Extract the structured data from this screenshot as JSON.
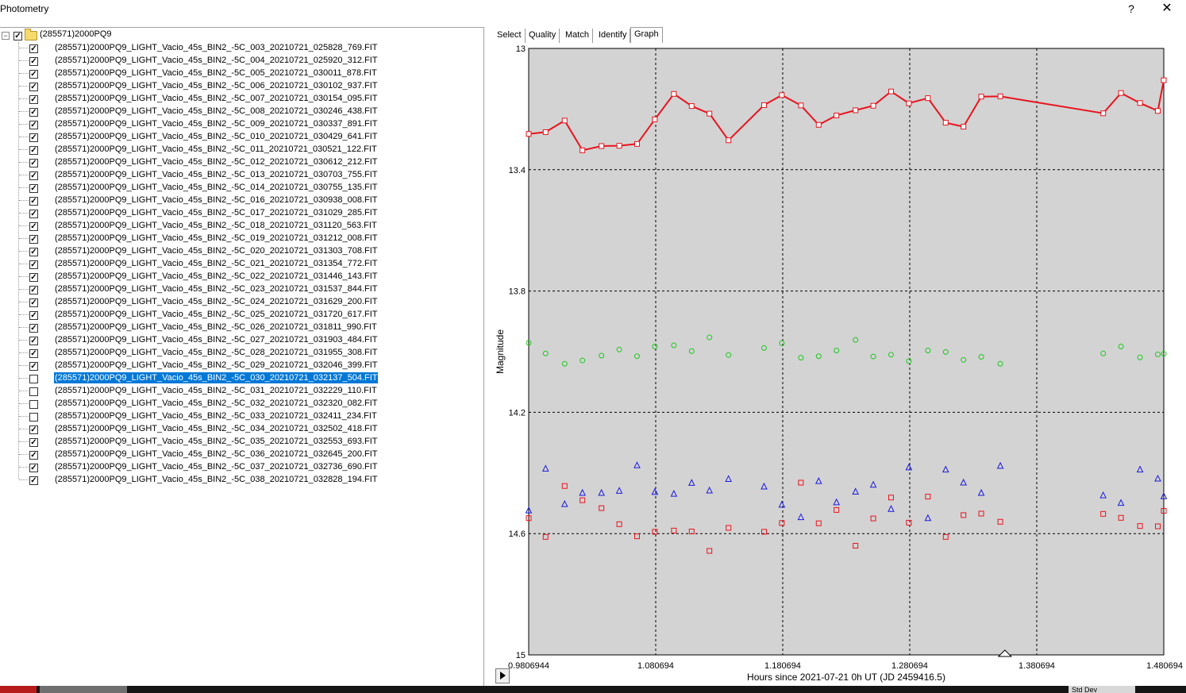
{
  "window": {
    "title": "Photometry",
    "help_label": "?",
    "close_label": "✕"
  },
  "tree": {
    "root_label": "(285571)2000PQ9",
    "root_expander": "−",
    "root_checked": true,
    "items": [
      {
        "label": "(285571)2000PQ9_LIGHT_Vacio_45s_BIN2_-5C_003_20210721_025828_769.FIT",
        "checked": true
      },
      {
        "label": "(285571)2000PQ9_LIGHT_Vacio_45s_BIN2_-5C_004_20210721_025920_312.FIT",
        "checked": true
      },
      {
        "label": "(285571)2000PQ9_LIGHT_Vacio_45s_BIN2_-5C_005_20210721_030011_878.FIT",
        "checked": true
      },
      {
        "label": "(285571)2000PQ9_LIGHT_Vacio_45s_BIN2_-5C_006_20210721_030102_937.FIT",
        "checked": true
      },
      {
        "label": "(285571)2000PQ9_LIGHT_Vacio_45s_BIN2_-5C_007_20210721_030154_095.FIT",
        "checked": true
      },
      {
        "label": "(285571)2000PQ9_LIGHT_Vacio_45s_BIN2_-5C_008_20210721_030246_438.FIT",
        "checked": true
      },
      {
        "label": "(285571)2000PQ9_LIGHT_Vacio_45s_BIN2_-5C_009_20210721_030337_891.FIT",
        "checked": true
      },
      {
        "label": "(285571)2000PQ9_LIGHT_Vacio_45s_BIN2_-5C_010_20210721_030429_641.FIT",
        "checked": true
      },
      {
        "label": "(285571)2000PQ9_LIGHT_Vacio_45s_BIN2_-5C_011_20210721_030521_122.FIT",
        "checked": true
      },
      {
        "label": "(285571)2000PQ9_LIGHT_Vacio_45s_BIN2_-5C_012_20210721_030612_212.FIT",
        "checked": true
      },
      {
        "label": "(285571)2000PQ9_LIGHT_Vacio_45s_BIN2_-5C_013_20210721_030703_755.FIT",
        "checked": true
      },
      {
        "label": "(285571)2000PQ9_LIGHT_Vacio_45s_BIN2_-5C_014_20210721_030755_135.FIT",
        "checked": true
      },
      {
        "label": "(285571)2000PQ9_LIGHT_Vacio_45s_BIN2_-5C_016_20210721_030938_008.FIT",
        "checked": true
      },
      {
        "label": "(285571)2000PQ9_LIGHT_Vacio_45s_BIN2_-5C_017_20210721_031029_285.FIT",
        "checked": true
      },
      {
        "label": "(285571)2000PQ9_LIGHT_Vacio_45s_BIN2_-5C_018_20210721_031120_563.FIT",
        "checked": true
      },
      {
        "label": "(285571)2000PQ9_LIGHT_Vacio_45s_BIN2_-5C_019_20210721_031212_008.FIT",
        "checked": true
      },
      {
        "label": "(285571)2000PQ9_LIGHT_Vacio_45s_BIN2_-5C_020_20210721_031303_708.FIT",
        "checked": true
      },
      {
        "label": "(285571)2000PQ9_LIGHT_Vacio_45s_BIN2_-5C_021_20210721_031354_772.FIT",
        "checked": true
      },
      {
        "label": "(285571)2000PQ9_LIGHT_Vacio_45s_BIN2_-5C_022_20210721_031446_143.FIT",
        "checked": true
      },
      {
        "label": "(285571)2000PQ9_LIGHT_Vacio_45s_BIN2_-5C_023_20210721_031537_844.FIT",
        "checked": true
      },
      {
        "label": "(285571)2000PQ9_LIGHT_Vacio_45s_BIN2_-5C_024_20210721_031629_200.FIT",
        "checked": true
      },
      {
        "label": "(285571)2000PQ9_LIGHT_Vacio_45s_BIN2_-5C_025_20210721_031720_617.FIT",
        "checked": true
      },
      {
        "label": "(285571)2000PQ9_LIGHT_Vacio_45s_BIN2_-5C_026_20210721_031811_990.FIT",
        "checked": true
      },
      {
        "label": "(285571)2000PQ9_LIGHT_Vacio_45s_BIN2_-5C_027_20210721_031903_484.FIT",
        "checked": true
      },
      {
        "label": "(285571)2000PQ9_LIGHT_Vacio_45s_BIN2_-5C_028_20210721_031955_308.FIT",
        "checked": true
      },
      {
        "label": "(285571)2000PQ9_LIGHT_Vacio_45s_BIN2_-5C_029_20210721_032046_399.FIT",
        "checked": true
      },
      {
        "label": "(285571)2000PQ9_LIGHT_Vacio_45s_BIN2_-5C_030_20210721_032137_504.FIT",
        "checked": false,
        "selected": true
      },
      {
        "label": "(285571)2000PQ9_LIGHT_Vacio_45s_BIN2_-5C_031_20210721_032229_110.FIT",
        "checked": false
      },
      {
        "label": "(285571)2000PQ9_LIGHT_Vacio_45s_BIN2_-5C_032_20210721_032320_082.FIT",
        "checked": false
      },
      {
        "label": "(285571)2000PQ9_LIGHT_Vacio_45s_BIN2_-5C_033_20210721_032411_234.FIT",
        "checked": false
      },
      {
        "label": "(285571)2000PQ9_LIGHT_Vacio_45s_BIN2_-5C_034_20210721_032502_418.FIT",
        "checked": true
      },
      {
        "label": "(285571)2000PQ9_LIGHT_Vacio_45s_BIN2_-5C_035_20210721_032553_693.FIT",
        "checked": true
      },
      {
        "label": "(285571)2000PQ9_LIGHT_Vacio_45s_BIN2_-5C_036_20210721_032645_200.FIT",
        "checked": true
      },
      {
        "label": "(285571)2000PQ9_LIGHT_Vacio_45s_BIN2_-5C_037_20210721_032736_690.FIT",
        "checked": true
      },
      {
        "label": "(285571)2000PQ9_LIGHT_Vacio_45s_BIN2_-5C_038_20210721_032828_194.FIT",
        "checked": true
      }
    ]
  },
  "tabs": [
    {
      "label": "Select",
      "active": false
    },
    {
      "label": "Quality",
      "active": false
    },
    {
      "label": "Match",
      "active": false
    },
    {
      "label": "Identify",
      "active": false
    },
    {
      "label": "Graph",
      "active": true
    }
  ],
  "status_strip": {
    "std_dev_label": "Std Dev"
  },
  "colors": {
    "plot_background": "#d3d3d3",
    "target": "#e8141e",
    "comp_green": "#1ec81e",
    "comp_blue": "#1a1ae0",
    "comp_red": "#e8141e",
    "selection": "#0078d7"
  },
  "icons": {
    "play": "play-icon",
    "folder": "folder-icon",
    "cursor": "triangle-cursor-icon"
  },
  "chart_data": {
    "type": "scatter",
    "xlabel": "Hours since 2021-07-21 0h UT (JD 2459416.5)",
    "ylabel": "Magnitude",
    "xlim": [
      0.9806944,
      1.480694
    ],
    "ylim": [
      15,
      13
    ],
    "y_inverted": true,
    "xticks": [
      0.9806944,
      1.080694,
      1.180694,
      1.280694,
      1.380694,
      1.480694
    ],
    "xtick_labels": [
      "0.9806944",
      "1.080694",
      "1.180694",
      "1.280694",
      "1.380694",
      "1.480694"
    ],
    "yticks": [
      13,
      13.4,
      13.8,
      14.2,
      14.6,
      15
    ],
    "ytick_labels": [
      "13",
      "13.4",
      "13.8",
      "14.2",
      "14.6",
      "15"
    ],
    "grid": true,
    "cursor_x": 1.3556,
    "series": [
      {
        "marker": "square",
        "color": "#e8141e",
        "connected": true,
        "points": [
          [
            0.9806944,
            13.282
          ],
          [
            0.994,
            13.276
          ],
          [
            1.009,
            13.238
          ],
          [
            1.023,
            13.336
          ],
          [
            1.038,
            13.322
          ],
          [
            1.052,
            13.321
          ],
          [
            1.066,
            13.315
          ],
          [
            1.08,
            13.234
          ],
          [
            1.095,
            13.15
          ],
          [
            1.109,
            13.19
          ],
          [
            1.123,
            13.215
          ],
          [
            1.138,
            13.303
          ],
          [
            1.166,
            13.187
          ],
          [
            1.18,
            13.154
          ],
          [
            1.195,
            13.188
          ],
          [
            1.209,
            13.252
          ],
          [
            1.223,
            13.221
          ],
          [
            1.238,
            13.204
          ],
          [
            1.252,
            13.189
          ],
          [
            1.266,
            13.142
          ],
          [
            1.28,
            13.181
          ],
          [
            1.295,
            13.164
          ],
          [
            1.309,
            13.245
          ],
          [
            1.323,
            13.258
          ],
          [
            1.337,
            13.159
          ],
          [
            1.352,
            13.158
          ],
          [
            1.433,
            13.214
          ],
          [
            1.447,
            13.147
          ],
          [
            1.462,
            13.18
          ],
          [
            1.476,
            13.206
          ],
          [
            1.4807,
            13.105
          ]
        ]
      },
      {
        "marker": "circle",
        "color": "#1ec81e",
        "connected": false,
        "points": [
          [
            0.9806944,
            13.971
          ],
          [
            0.994,
            14.006
          ],
          [
            1.009,
            14.04
          ],
          [
            1.023,
            14.029
          ],
          [
            1.038,
            14.013
          ],
          [
            1.052,
            13.993
          ],
          [
            1.066,
            14.015
          ],
          [
            1.08,
            13.983
          ],
          [
            1.095,
            13.979
          ],
          [
            1.109,
            13.998
          ],
          [
            1.123,
            13.953
          ],
          [
            1.138,
            14.011
          ],
          [
            1.166,
            13.988
          ],
          [
            1.18,
            13.972
          ],
          [
            1.195,
            14.02
          ],
          [
            1.209,
            14.015
          ],
          [
            1.223,
            13.996
          ],
          [
            1.238,
            13.961
          ],
          [
            1.252,
            14.016
          ],
          [
            1.266,
            14.01
          ],
          [
            1.28,
            14.031
          ],
          [
            1.295,
            13.996
          ],
          [
            1.309,
            14.001
          ],
          [
            1.323,
            14.027
          ],
          [
            1.337,
            14.017
          ],
          [
            1.352,
            14.04
          ],
          [
            1.433,
            14.006
          ],
          [
            1.447,
            13.983
          ],
          [
            1.462,
            14.019
          ],
          [
            1.476,
            14.009
          ],
          [
            1.4807,
            14.007
          ]
        ]
      },
      {
        "marker": "triangle",
        "color": "#1a1ae0",
        "connected": false,
        "points": [
          [
            0.9806944,
            14.524
          ],
          [
            0.994,
            14.386
          ],
          [
            1.009,
            14.503
          ],
          [
            1.023,
            14.466
          ],
          [
            1.038,
            14.466
          ],
          [
            1.052,
            14.459
          ],
          [
            1.066,
            14.375
          ],
          [
            1.08,
            14.463
          ],
          [
            1.095,
            14.469
          ],
          [
            1.109,
            14.433
          ],
          [
            1.123,
            14.458
          ],
          [
            1.138,
            14.42
          ],
          [
            1.166,
            14.445
          ],
          [
            1.18,
            14.505
          ],
          [
            1.195,
            14.546
          ],
          [
            1.209,
            14.427
          ],
          [
            1.223,
            14.497
          ],
          [
            1.238,
            14.462
          ],
          [
            1.252,
            14.439
          ],
          [
            1.266,
            14.519
          ],
          [
            1.28,
            14.382
          ],
          [
            1.295,
            14.549
          ],
          [
            1.309,
            14.389
          ],
          [
            1.323,
            14.432
          ],
          [
            1.337,
            14.466
          ],
          [
            1.352,
            14.377
          ],
          [
            1.433,
            14.474
          ],
          [
            1.447,
            14.499
          ],
          [
            1.462,
            14.389
          ],
          [
            1.476,
            14.419
          ],
          [
            1.4807,
            14.477
          ]
        ]
      },
      {
        "marker": "square",
        "color": "#e8141e",
        "connected": false,
        "points": [
          [
            0.9806944,
            14.549
          ],
          [
            0.994,
            14.611
          ],
          [
            1.009,
            14.443
          ],
          [
            1.023,
            14.49
          ],
          [
            1.038,
            14.516
          ],
          [
            1.052,
            14.569
          ],
          [
            1.066,
            14.609
          ],
          [
            1.08,
            14.594
          ],
          [
            1.095,
            14.59
          ],
          [
            1.109,
            14.593
          ],
          [
            1.123,
            14.657
          ],
          [
            1.138,
            14.581
          ],
          [
            1.166,
            14.594
          ],
          [
            1.18,
            14.565
          ],
          [
            1.195,
            14.432
          ],
          [
            1.209,
            14.566
          ],
          [
            1.223,
            14.522
          ],
          [
            1.238,
            14.64
          ],
          [
            1.252,
            14.55
          ],
          [
            1.266,
            14.481
          ],
          [
            1.28,
            14.564
          ],
          [
            1.295,
            14.478
          ],
          [
            1.309,
            14.611
          ],
          [
            1.323,
            14.539
          ],
          [
            1.337,
            14.534
          ],
          [
            1.352,
            14.561
          ],
          [
            1.433,
            14.535
          ],
          [
            1.447,
            14.548
          ],
          [
            1.462,
            14.575
          ],
          [
            1.476,
            14.576
          ],
          [
            1.4807,
            14.525
          ]
        ]
      }
    ]
  }
}
